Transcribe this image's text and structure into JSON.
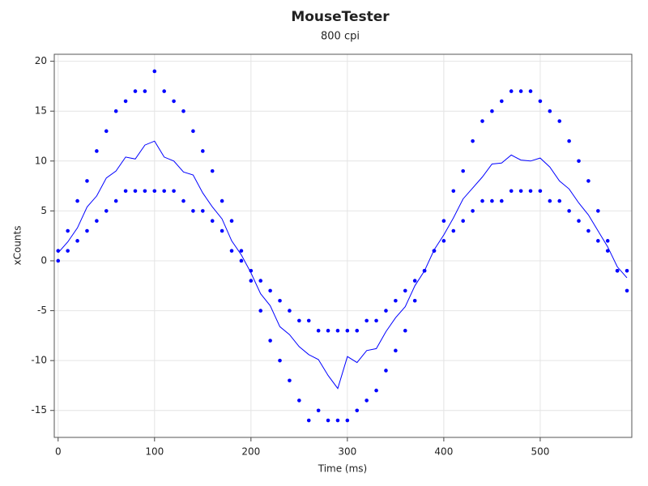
{
  "chart_data": {
    "type": "scatter",
    "title": "MouseTester",
    "subtitle": "800 cpi",
    "x_label": "Time (ms)",
    "y_label": "xCounts",
    "x": [
      0,
      10,
      20,
      30,
      40,
      50,
      60,
      70,
      80,
      90,
      100,
      110,
      120,
      130,
      140,
      150,
      160,
      170,
      180,
      190,
      200,
      210,
      220,
      230,
      240,
      250,
      260,
      270,
      280,
      290,
      300,
      310,
      320,
      330,
      340,
      350,
      360,
      370,
      380,
      390,
      400,
      410,
      420,
      430,
      440,
      450,
      460,
      470,
      480,
      490,
      500,
      510,
      520,
      530,
      540,
      550,
      560,
      570,
      580,
      590
    ],
    "series": [
      {
        "kind": "scatter",
        "color": "#0000ff",
        "values": [
          1,
          3,
          6,
          8,
          11,
          13,
          15,
          16,
          17,
          17,
          19,
          17,
          16,
          15,
          13,
          11,
          9,
          6,
          4,
          1,
          -2,
          -5,
          -8,
          -10,
          -12,
          -14,
          -16,
          -15,
          -16,
          -16,
          -16,
          -15,
          -14,
          -13,
          -11,
          -9,
          -7,
          -4,
          -1,
          1,
          4,
          7,
          9,
          12,
          14,
          15,
          16,
          17,
          17,
          17,
          16,
          15,
          14,
          12,
          10,
          8,
          5,
          2,
          -1,
          -3
        ]
      },
      {
        "kind": "scatter",
        "color": "#0000ff",
        "values": [
          0,
          1,
          2,
          3,
          4,
          5,
          6,
          7,
          7,
          7,
          7,
          7,
          7,
          6,
          5,
          5,
          4,
          3,
          1,
          0,
          -1,
          -2,
          -3,
          -4,
          -5,
          -6,
          -6,
          -7,
          -7,
          -7,
          -7,
          -7,
          -6,
          -6,
          -5,
          -4,
          -3,
          -2,
          -1,
          1,
          2,
          3,
          4,
          5,
          6,
          6,
          6,
          7,
          7,
          7,
          7,
          6,
          6,
          5,
          4,
          3,
          2,
          1,
          -1,
          -1
        ]
      },
      {
        "kind": "line",
        "color": "#0000ff",
        "values": [
          0.8,
          1.9,
          3.3,
          5.4,
          6.5,
          8.3,
          9.0,
          10.4,
          10.2,
          11.6,
          12.0,
          10.4,
          10.0,
          8.9,
          8.6,
          6.8,
          5.4,
          4.2,
          2.0,
          0.6,
          -1.2,
          -3.3,
          -4.5,
          -6.6,
          -7.4,
          -8.6,
          -9.4,
          -9.9,
          -11.5,
          -12.8,
          -9.6,
          -10.2,
          -9.0,
          -8.8,
          -7.1,
          -5.7,
          -4.6,
          -2.5,
          -1.0,
          1.1,
          2.6,
          4.3,
          6.2,
          7.3,
          8.4,
          9.7,
          9.8,
          10.6,
          10.1,
          10.0,
          10.3,
          9.4,
          8.0,
          7.2,
          5.8,
          4.6,
          3.0,
          1.4,
          -0.6,
          -1.7
        ]
      }
    ],
    "xlim": [
      -4,
      595
    ],
    "ylim": [
      -17.7,
      20.7
    ],
    "xticks": [
      0,
      100,
      200,
      300,
      400,
      500
    ],
    "yticks": [
      -15,
      -10,
      -5,
      0,
      5,
      10,
      15,
      20
    ],
    "grid": true
  }
}
